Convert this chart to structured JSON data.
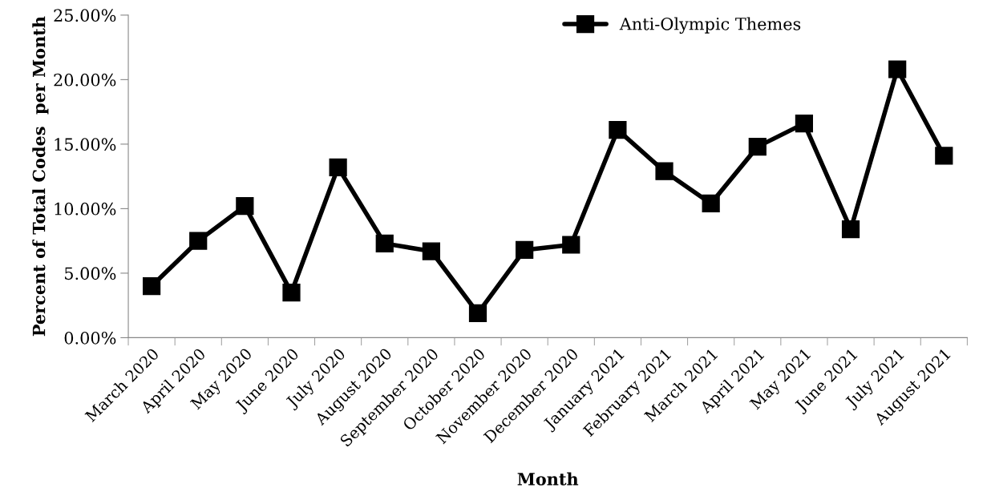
{
  "chart_data": {
    "type": "line",
    "xlabel": "Month",
    "ylabel": "Percent of Total Codes  per Month",
    "categories": [
      "March 2020",
      "April 2020",
      "May 2020",
      "June 2020",
      "July 2020",
      "August 2020",
      "September 2020",
      "October 2020",
      "November 2020",
      "December 2020",
      "January 2021",
      "February 2021",
      "March 2021",
      "April 2021",
      "May 2021",
      "June 2021",
      "July 2021",
      "August 2021"
    ],
    "series": [
      {
        "name": "Anti-Olympic Themes",
        "color": "#000000",
        "values": [
          4.0,
          7.5,
          10.2,
          3.5,
          13.2,
          7.3,
          6.7,
          1.9,
          6.8,
          7.2,
          16.1,
          12.9,
          10.4,
          14.8,
          16.6,
          8.4,
          20.8,
          14.1
        ]
      }
    ],
    "ylim": [
      0,
      25
    ],
    "yticks": [
      {
        "value": 0,
        "label": "0.00%"
      },
      {
        "value": 5,
        "label": "5.00%"
      },
      {
        "value": 10,
        "label": "10.00%"
      },
      {
        "value": 15,
        "label": "15.00%"
      },
      {
        "value": 20,
        "label": "20.00%"
      },
      {
        "value": 25,
        "label": "25.00%"
      }
    ],
    "grid": false,
    "legend": "top right",
    "marker": "square",
    "line_style": "solid"
  }
}
